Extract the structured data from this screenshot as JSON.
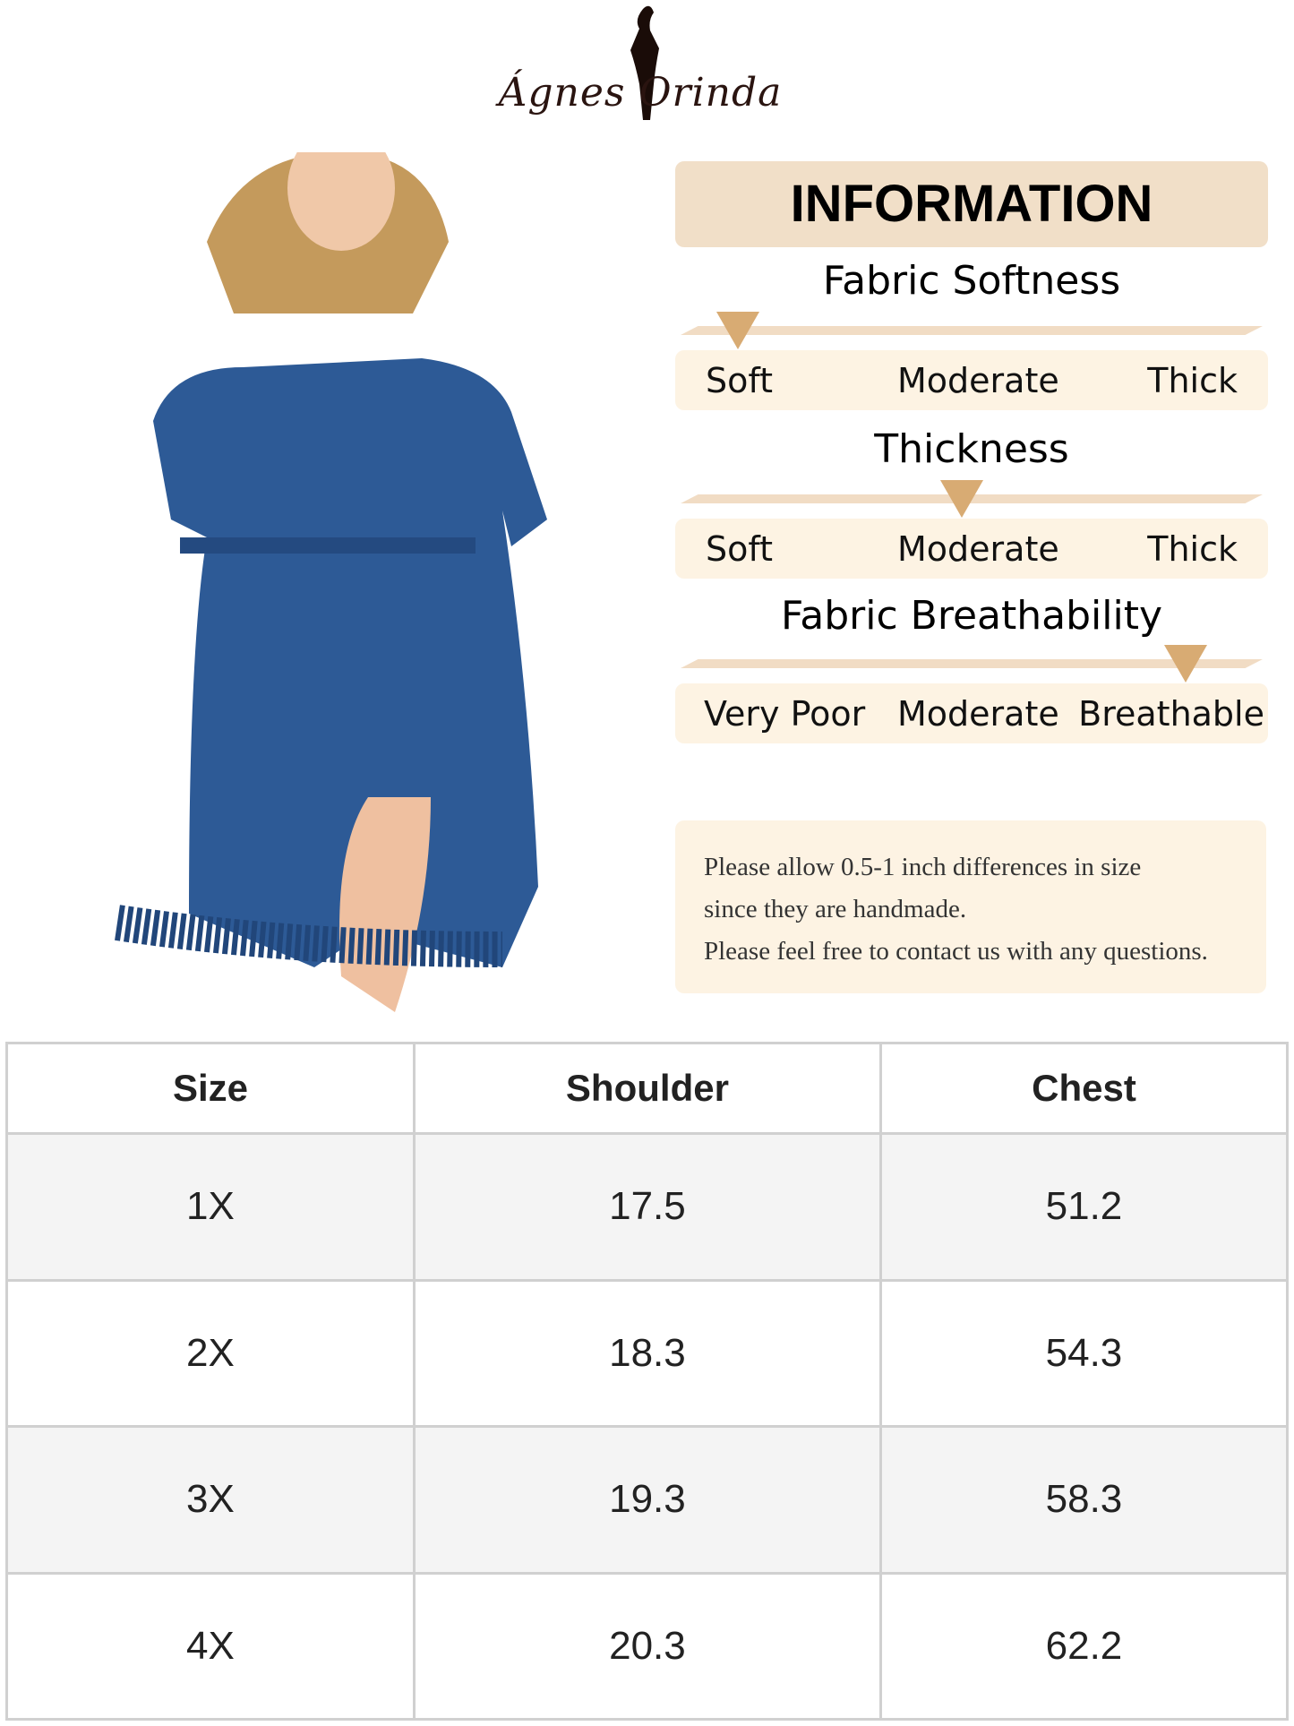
{
  "brand": {
    "logo_text": "Ágnes Orinda"
  },
  "info": {
    "title": "INFORMATION",
    "scales": [
      {
        "title": "Fabric Softness",
        "labels": [
          "Soft",
          "Moderate",
          "Thick"
        ],
        "selected": "Soft",
        "level": 0.1
      },
      {
        "title": "Thickness",
        "labels": [
          "Soft",
          "Moderate",
          "Thick"
        ],
        "selected": "Moderate",
        "level": 0.5
      },
      {
        "title": "Fabric Breathability",
        "labels": [
          "Very Poor",
          "Moderate",
          "Breathable"
        ],
        "selected": "Breathable",
        "level": 0.9
      }
    ],
    "accent": "#d8ab73"
  },
  "note": {
    "lines": [
      "Please allow 0.5-1 inch differences in size",
      "since they are handmade.",
      "Please feel free to contact us with any questions."
    ]
  },
  "size_table": {
    "headers": [
      "Size",
      "Shoulder",
      "Chest"
    ],
    "rows": [
      [
        "1X",
        "17.5",
        "51.2"
      ],
      [
        "2X",
        "18.3",
        "54.3"
      ],
      [
        "3X",
        "19.3",
        "58.3"
      ],
      [
        "4X",
        "20.3",
        "62.2"
      ]
    ]
  }
}
